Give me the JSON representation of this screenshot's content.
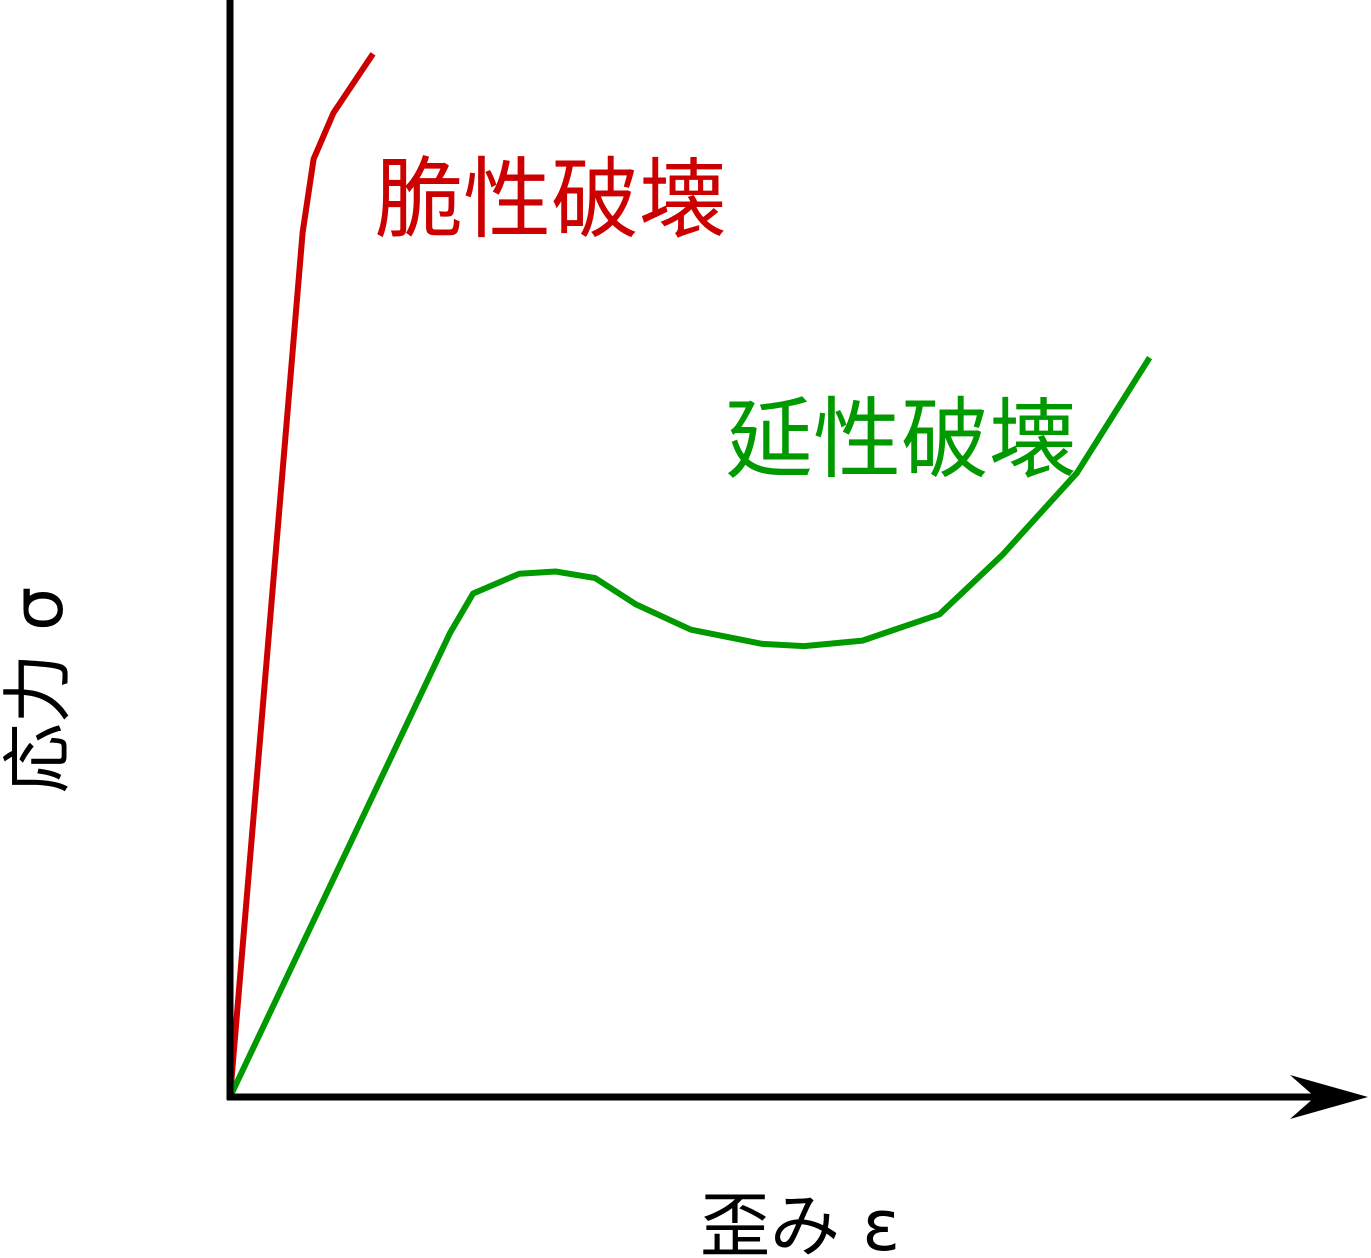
{
  "chart_data": {
    "type": "line",
    "xlabel": "歪み ε",
    "ylabel": "応力 σ",
    "xlim": [
      0,
      100
    ],
    "ylim": [
      0,
      100
    ],
    "grid": false,
    "axis_ticks": false,
    "series": [
      {
        "name": "脆性破壊",
        "color": "#cc0000",
        "points": [
          [
            0,
            0
          ],
          [
            6.6,
            78.8
          ],
          [
            7.6,
            85.5
          ],
          [
            9.4,
            89.7
          ],
          [
            13.0,
            95.1
          ]
        ]
      },
      {
        "name": "延性破壊",
        "color": "#009900",
        "points": [
          [
            0,
            0
          ],
          [
            20.0,
            42.3
          ],
          [
            22.1,
            45.9
          ],
          [
            26.3,
            47.7
          ],
          [
            29.6,
            47.9
          ],
          [
            33.2,
            47.3
          ],
          [
            36.9,
            44.9
          ],
          [
            41.9,
            42.6
          ],
          [
            48.4,
            41.3
          ],
          [
            52.2,
            41.1
          ],
          [
            57.5,
            41.6
          ],
          [
            64.5,
            44.0
          ],
          [
            70.2,
            49.4
          ],
          [
            77.0,
            56.9
          ],
          [
            83.6,
            67.4
          ]
        ]
      }
    ]
  }
}
